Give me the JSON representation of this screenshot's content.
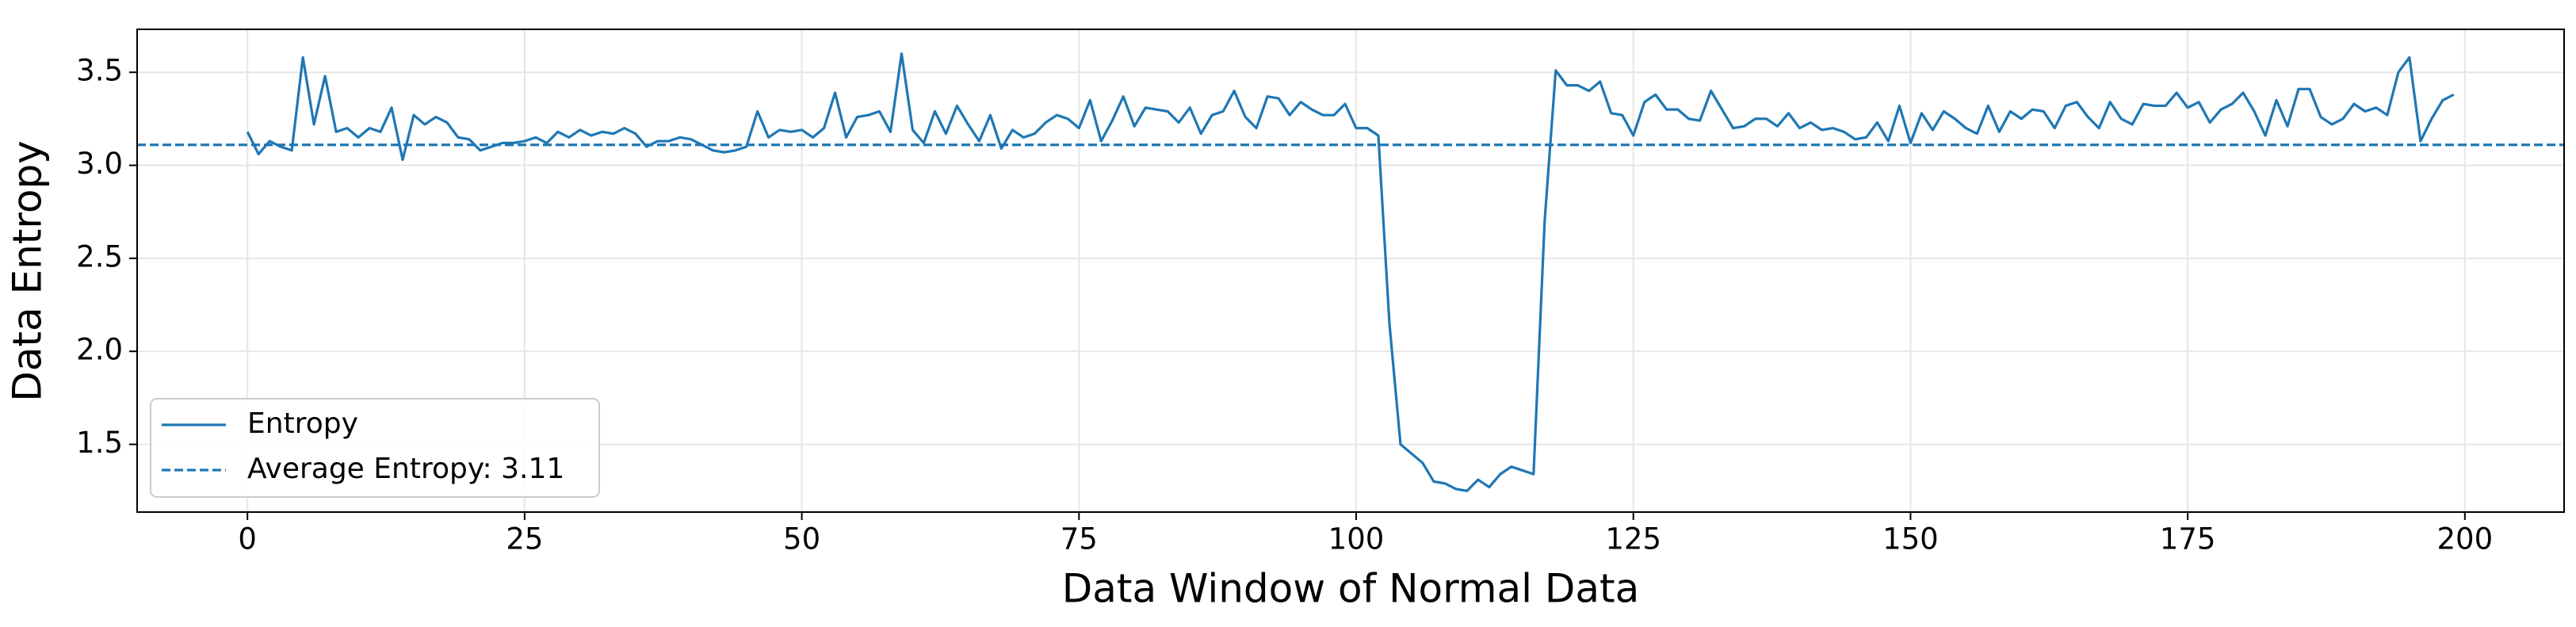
{
  "chart_data": {
    "type": "line",
    "xlabel": "Data Window of Normal Data",
    "ylabel": "Data Entropy",
    "x": [
      0,
      1,
      2,
      3,
      4,
      5,
      6,
      7,
      8,
      9,
      10,
      11,
      12,
      13,
      14,
      15,
      16,
      17,
      18,
      19,
      20,
      21,
      22,
      23,
      24,
      25,
      26,
      27,
      28,
      29,
      30,
      31,
      32,
      33,
      34,
      35,
      36,
      37,
      38,
      39,
      40,
      41,
      42,
      43,
      44,
      45,
      46,
      47,
      48,
      49,
      50,
      51,
      52,
      53,
      54,
      55,
      56,
      57,
      58,
      59,
      60,
      61,
      62,
      63,
      64,
      65,
      66,
      67,
      68,
      69,
      70,
      71,
      72,
      73,
      74,
      75,
      76,
      77,
      78,
      79,
      80,
      81,
      82,
      83,
      84,
      85,
      86,
      87,
      88,
      89,
      90,
      91,
      92,
      93,
      94,
      95,
      96,
      97,
      98,
      99,
      100,
      101,
      102,
      103,
      104,
      105,
      106,
      107,
      108,
      109,
      110,
      111,
      112,
      113,
      114,
      115,
      116,
      117,
      118,
      119,
      120,
      121,
      122,
      123,
      124,
      125,
      126,
      127,
      128,
      129,
      130,
      131,
      132,
      133,
      134,
      135,
      136,
      137,
      138,
      139,
      140,
      141,
      142,
      143,
      144,
      145,
      146,
      147,
      148,
      149,
      150,
      151,
      152,
      153,
      154,
      155,
      156,
      157,
      158,
      159,
      160,
      161,
      162,
      163,
      164,
      165,
      166,
      167,
      168,
      169,
      170,
      171,
      172,
      173,
      174,
      175,
      176,
      177,
      178,
      179,
      180,
      181,
      182,
      183,
      184,
      185,
      186,
      187,
      188,
      189,
      190,
      191,
      192,
      193,
      194,
      195,
      196,
      197,
      198,
      199
    ],
    "series": [
      {
        "name": "Entropy",
        "color": "#1f77b4",
        "values": [
          3.18,
          3.06,
          3.13,
          3.1,
          3.08,
          3.58,
          3.22,
          3.48,
          3.18,
          3.2,
          3.15,
          3.2,
          3.18,
          3.31,
          3.03,
          3.27,
          3.22,
          3.26,
          3.23,
          3.15,
          3.14,
          3.08,
          3.1,
          3.12,
          3.12,
          3.13,
          3.15,
          3.12,
          3.18,
          3.15,
          3.19,
          3.16,
          3.18,
          3.17,
          3.2,
          3.17,
          3.1,
          3.13,
          3.13,
          3.15,
          3.14,
          3.11,
          3.08,
          3.07,
          3.08,
          3.1,
          3.29,
          3.15,
          3.19,
          3.18,
          3.19,
          3.15,
          3.2,
          3.39,
          3.15,
          3.26,
          3.27,
          3.29,
          3.18,
          3.6,
          3.19,
          3.12,
          3.29,
          3.17,
          3.32,
          3.22,
          3.13,
          3.27,
          3.09,
          3.19,
          3.15,
          3.17,
          3.23,
          3.27,
          3.25,
          3.2,
          3.35,
          3.13,
          3.24,
          3.37,
          3.21,
          3.31,
          3.3,
          3.29,
          3.23,
          3.31,
          3.17,
          3.27,
          3.29,
          3.4,
          3.26,
          3.2,
          3.37,
          3.36,
          3.27,
          3.34,
          3.3,
          3.27,
          3.27,
          3.33,
          3.2,
          3.2,
          3.16,
          2.15,
          1.5,
          1.45,
          1.4,
          1.3,
          1.29,
          1.26,
          1.25,
          1.31,
          1.27,
          1.34,
          1.38,
          1.36,
          1.34,
          2.7,
          3.51,
          3.43,
          3.43,
          3.4,
          3.45,
          3.28,
          3.27,
          3.16,
          3.34,
          3.38,
          3.3,
          3.3,
          3.25,
          3.24,
          3.4,
          3.3,
          3.2,
          3.21,
          3.25,
          3.25,
          3.21,
          3.28,
          3.2,
          3.23,
          3.19,
          3.2,
          3.18,
          3.14,
          3.15,
          3.23,
          3.13,
          3.32,
          3.12,
          3.28,
          3.19,
          3.29,
          3.25,
          3.2,
          3.17,
          3.32,
          3.18,
          3.29,
          3.25,
          3.3,
          3.29,
          3.2,
          3.32,
          3.34,
          3.26,
          3.2,
          3.34,
          3.25,
          3.22,
          3.33,
          3.32,
          3.32,
          3.39,
          3.31,
          3.34,
          3.23,
          3.3,
          3.33,
          3.39,
          3.29,
          3.16,
          3.35,
          3.21,
          3.41,
          3.41,
          3.26,
          3.22,
          3.25,
          3.33,
          3.29,
          3.31,
          3.27,
          3.5,
          3.58,
          3.13,
          3.25,
          3.35,
          3.38
        ]
      }
    ],
    "hlines": [
      {
        "name": "Average Entropy: 3.11",
        "value": 3.11,
        "color": "#1f77b4",
        "style": "dashed"
      }
    ],
    "xlim": [
      -9.95,
      208.95
    ],
    "xticks": [
      0,
      25,
      50,
      75,
      100,
      125,
      150,
      175,
      200
    ],
    "ylim": [
      1.136,
      3.731
    ],
    "yticks": [
      1.5,
      {
        "value": 2,
        "label": "2.0"
      },
      2.5,
      {
        "value": 3,
        "label": "3.0"
      },
      3.5
    ],
    "grid": true,
    "legend": "lower left"
  }
}
